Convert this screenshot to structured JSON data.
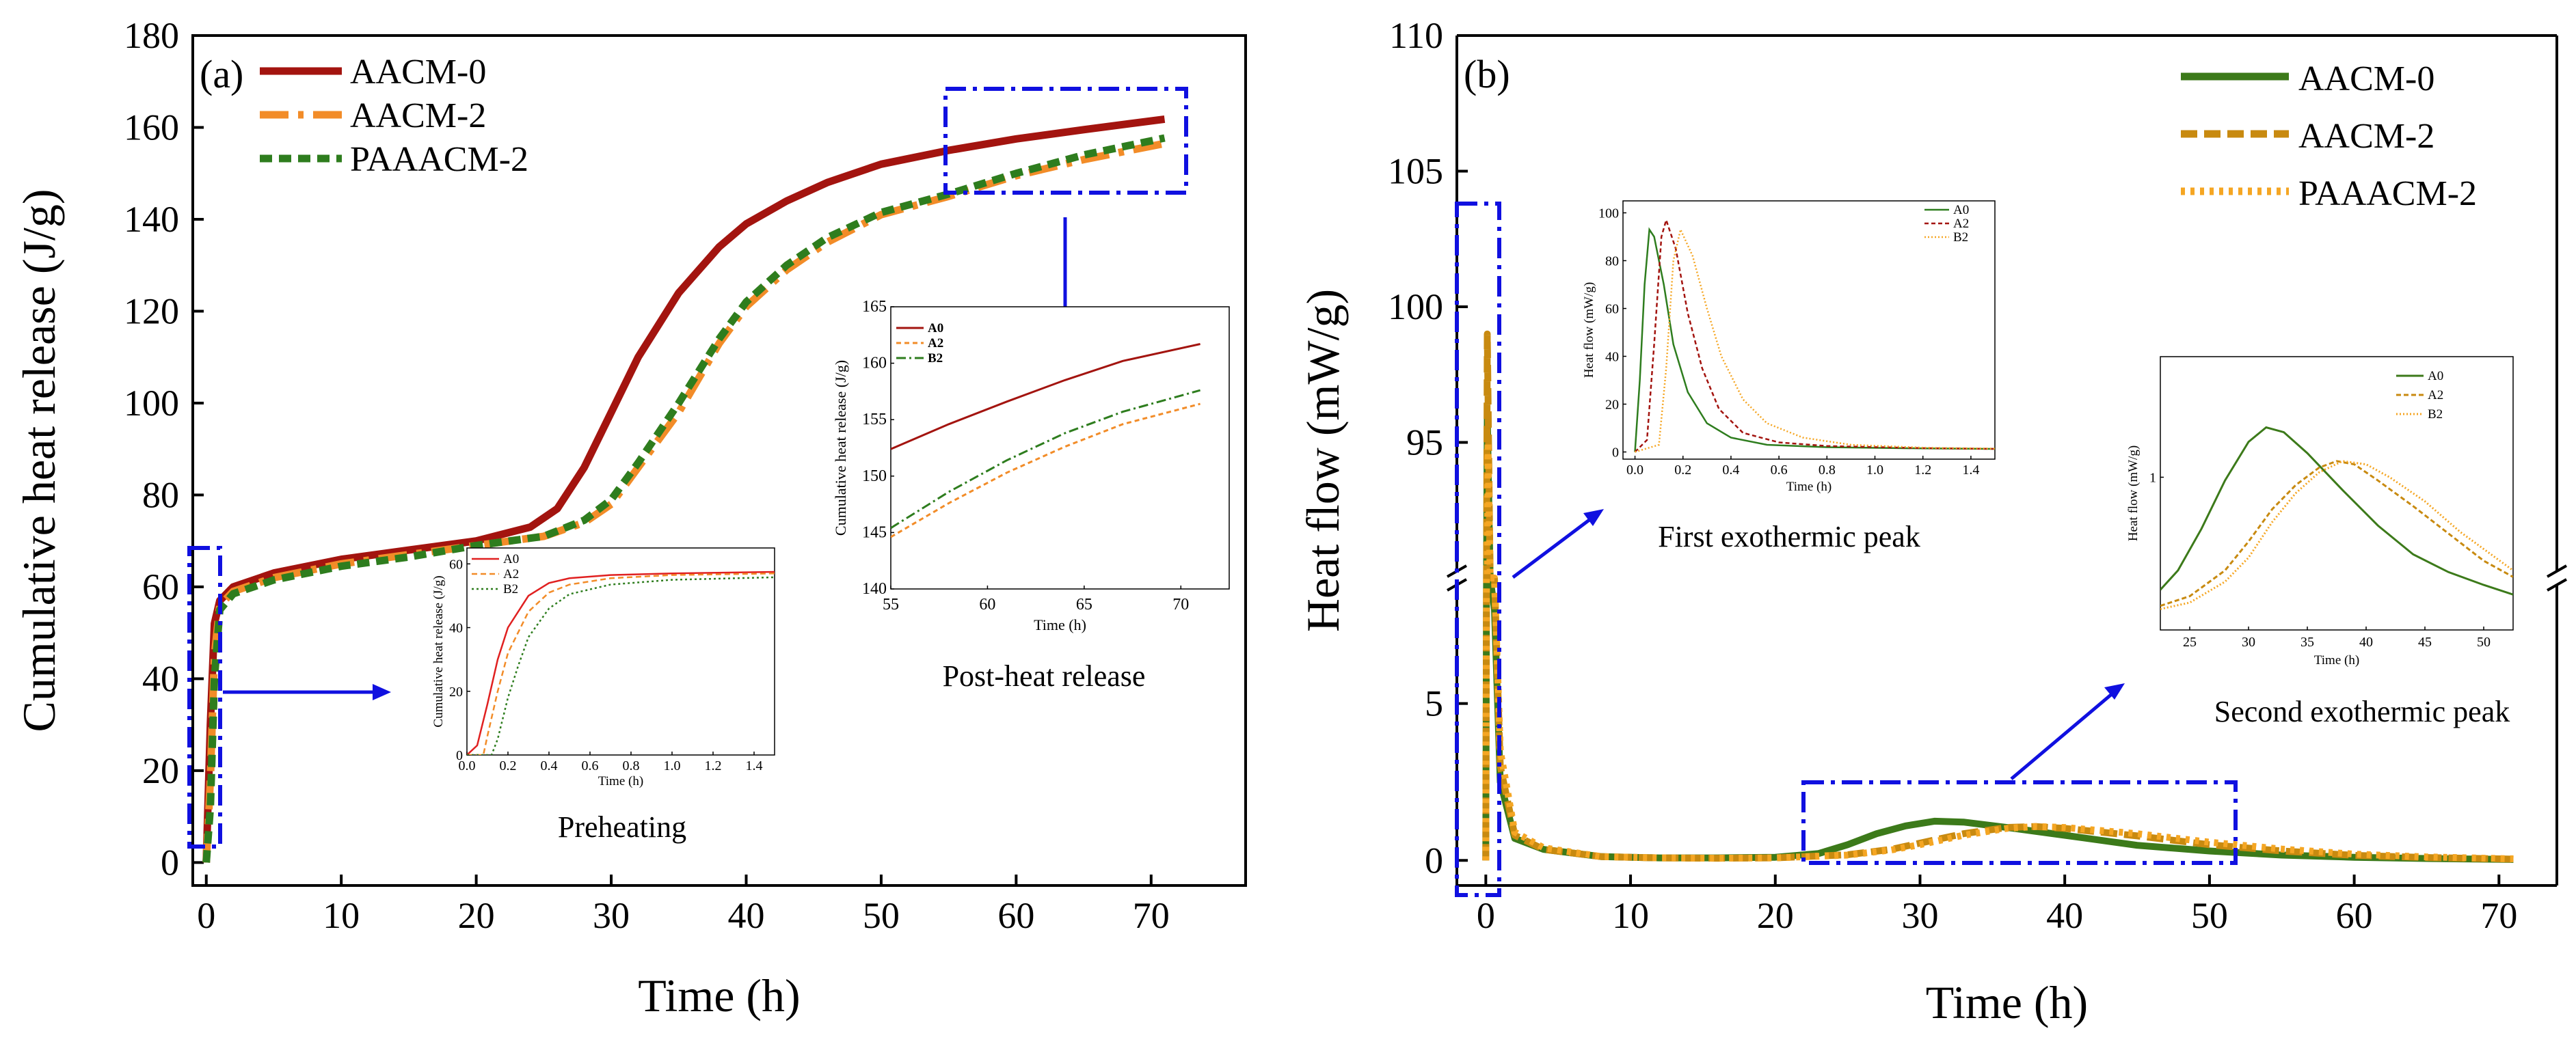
{
  "colors": {
    "dark_red": "#A3140F",
    "orange": "#F28C28",
    "green": "#2E7D1E",
    "dark_green": "#3C7A1A",
    "gold": "#C88A10",
    "light_orange": "#F5A623",
    "blue": "#1010E0",
    "red_inset": "#E02020"
  },
  "chart_data": [
    {
      "id": "a",
      "type": "line",
      "panel_label": "(a)",
      "xlabel": "Time (h)",
      "ylabel": "Cumulative heat release (J/g)",
      "xlim": [
        -1,
        77
      ],
      "ylim": [
        -5,
        180
      ],
      "xticks": [
        "0",
        "10",
        "20",
        "30",
        "40",
        "50",
        "60",
        "70"
      ],
      "yticks": [
        "0",
        "20",
        "40",
        "60",
        "80",
        "100",
        "120",
        "140",
        "160",
        "180"
      ],
      "legend": [
        "AACM-0",
        "AACM-2",
        "PAAACM-2"
      ],
      "series": [
        {
          "name": "AACM-0",
          "x": [
            0,
            0.3,
            0.6,
            1,
            2,
            5,
            10,
            15,
            20,
            24,
            26,
            28,
            30,
            32,
            35,
            38,
            40,
            43,
            46,
            50,
            55,
            60,
            65,
            71
          ],
          "y": [
            0,
            30,
            52,
            57,
            60,
            63,
            66,
            68,
            70,
            73,
            77,
            86,
            98,
            110,
            124,
            134,
            139,
            144,
            148,
            152,
            155,
            157.5,
            159.5,
            161.8
          ]
        },
        {
          "name": "AACM-2",
          "x": [
            0,
            0.3,
            0.6,
            1,
            2,
            5,
            10,
            15,
            20,
            25,
            28,
            30,
            32,
            35,
            38,
            40,
            43,
            46,
            50,
            55,
            60,
            65,
            71
          ],
          "y": [
            0,
            18,
            45,
            56,
            59,
            62,
            65,
            67,
            69,
            71,
            74,
            78,
            86,
            98,
            113,
            121,
            129,
            135,
            141,
            145,
            149.5,
            153,
            156.5
          ]
        },
        {
          "name": "PAAACM-2",
          "x": [
            0,
            0.3,
            0.6,
            1,
            2,
            5,
            10,
            15,
            20,
            25,
            28,
            30,
            32,
            35,
            38,
            40,
            43,
            46,
            50,
            55,
            60,
            65,
            71
          ],
          "y": [
            0,
            12,
            40,
            55,
            58.5,
            61.5,
            64.5,
            66.5,
            69,
            71,
            74.5,
            79,
            87,
            100,
            114,
            122,
            130,
            136,
            141.5,
            145.5,
            150,
            154,
            157.7
          ]
        }
      ],
      "annotation_caption_preheat": "Preheating",
      "annotation_caption_post": "Post-heat release",
      "insets": [
        {
          "id": "preheat",
          "xlabel": "Time (h)",
          "ylabel": "Cumulative heat release (J/g)",
          "xlim": [
            0,
            1.5
          ],
          "ylim": [
            0,
            65
          ],
          "xticks": [
            "0.0",
            "0.2",
            "0.4",
            "0.6",
            "0.8",
            "1.0",
            "1.2",
            "1.4"
          ],
          "yticks": [
            "0",
            "20",
            "40",
            "60"
          ],
          "legend": [
            "A0",
            "A2",
            "B2"
          ],
          "series": [
            {
              "name": "A0",
              "x": [
                0,
                0.05,
                0.1,
                0.15,
                0.2,
                0.3,
                0.4,
                0.5,
                0.7,
                1.0,
                1.5
              ],
              "y": [
                0,
                3,
                16,
                30,
                40,
                50,
                54,
                55.5,
                56.5,
                57,
                57.5
              ]
            },
            {
              "name": "A2",
              "x": [
                0,
                0.08,
                0.1,
                0.15,
                0.2,
                0.3,
                0.4,
                0.5,
                0.7,
                1.0,
                1.5
              ],
              "y": [
                0,
                0,
                6,
                20,
                32,
                45,
                51,
                53.5,
                55.5,
                56.5,
                57
              ]
            },
            {
              "name": "B2",
              "x": [
                0,
                0.12,
                0.15,
                0.2,
                0.25,
                0.3,
                0.4,
                0.5,
                0.7,
                1.0,
                1.5
              ],
              "y": [
                0,
                0,
                5,
                18,
                28,
                37,
                46,
                50.5,
                53.5,
                55,
                55.8
              ]
            }
          ]
        },
        {
          "id": "post",
          "xlabel": "Time (h)",
          "ylabel": "Cumulative heat release (J/g)",
          "xlim": [
            55,
            72.5
          ],
          "ylim": [
            140,
            165
          ],
          "xticks": [
            "55",
            "60",
            "65",
            "70"
          ],
          "yticks": [
            "140",
            "145",
            "150",
            "155",
            "160",
            "165"
          ],
          "legend": [
            "A0",
            "A2",
            "B2"
          ],
          "series": [
            {
              "name": "A0",
              "x": [
                55,
                58,
                61,
                64,
                67,
                71
              ],
              "y": [
                152.4,
                154.6,
                156.6,
                158.5,
                160.2,
                161.7
              ]
            },
            {
              "name": "A2",
              "x": [
                55,
                58,
                61,
                64,
                67,
                71
              ],
              "y": [
                144.6,
                147.6,
                150.3,
                152.6,
                154.6,
                156.4
              ]
            },
            {
              "name": "B2",
              "x": [
                55,
                58,
                61,
                64,
                67,
                71
              ],
              "y": [
                145.4,
                148.6,
                151.4,
                153.8,
                155.7,
                157.6
              ]
            }
          ]
        }
      ]
    },
    {
      "id": "b",
      "type": "line",
      "panel_label": "(b)",
      "xlabel": "Time (h)",
      "ylabel": "Heat flow (mW/g)",
      "xlim": [
        -2,
        74
      ],
      "ylim_lower": [
        -0.8,
        9
      ],
      "ylim_upper": [
        90,
        110
      ],
      "xticks": [
        "0",
        "10",
        "20",
        "30",
        "40",
        "50",
        "60",
        "70"
      ],
      "yticks_lower": [
        "0",
        "5"
      ],
      "yticks_upper": [
        "95",
        "100",
        "105",
        "110"
      ],
      "legend": [
        "AACM-0",
        "AACM-2",
        "PAAACM-2"
      ],
      "series": [
        {
          "name": "AACM-0",
          "x": [
            0,
            0.05,
            0.1,
            0.3,
            0.6,
            1,
            2,
            4,
            8,
            12,
            16,
            20,
            23,
            25,
            27,
            29,
            31,
            33,
            36,
            40,
            45,
            50,
            55,
            60,
            65,
            71
          ],
          "y": [
            0,
            60,
            96,
            40,
            8,
            2.5,
            0.7,
            0.35,
            0.12,
            0.08,
            0.08,
            0.1,
            0.22,
            0.5,
            0.85,
            1.1,
            1.25,
            1.22,
            1.05,
            0.8,
            0.48,
            0.3,
            0.17,
            0.1,
            0.06,
            0.03
          ]
        },
        {
          "name": "AACM-2",
          "x": [
            0,
            0.05,
            0.1,
            0.3,
            0.6,
            1,
            2,
            4,
            8,
            12,
            16,
            20,
            25,
            28,
            30,
            33,
            36,
            38,
            40,
            45,
            50,
            55,
            60,
            65,
            71
          ],
          "y": [
            0,
            45,
            99,
            55,
            12,
            3,
            0.8,
            0.35,
            0.12,
            0.08,
            0.07,
            0.08,
            0.18,
            0.35,
            0.55,
            0.85,
            1.05,
            1.08,
            1.02,
            0.78,
            0.5,
            0.3,
            0.16,
            0.09,
            0.04
          ]
        },
        {
          "name": "PAAACM-2",
          "x": [
            0,
            0.05,
            0.1,
            0.15,
            0.3,
            0.6,
            1,
            2,
            4,
            8,
            12,
            16,
            20,
            25,
            28,
            30,
            33,
            36,
            38,
            40,
            45,
            50,
            55,
            60,
            65,
            71
          ],
          "y": [
            0,
            20,
            70,
            95,
            65,
            15,
            3.5,
            0.9,
            0.4,
            0.12,
            0.08,
            0.07,
            0.08,
            0.17,
            0.33,
            0.5,
            0.8,
            1.02,
            1.08,
            1.05,
            0.85,
            0.58,
            0.36,
            0.2,
            0.11,
            0.05
          ]
        }
      ],
      "annotation_caption_first": "First exothermic peak",
      "annotation_caption_second": "Second exothermic peak",
      "insets": [
        {
          "id": "first",
          "xlabel": "Time (h)",
          "ylabel": "Heat flow (mW/g)",
          "xlim": [
            -0.05,
            1.5
          ],
          "ylim": [
            -3,
            105
          ],
          "xticks": [
            "0.0",
            "0.2",
            "0.4",
            "0.6",
            "0.8",
            "1.0",
            "1.2",
            "1.4"
          ],
          "yticks": [
            "0",
            "20",
            "40",
            "60",
            "80",
            "100"
          ],
          "legend": [
            "A0",
            "A2",
            "B2"
          ],
          "series": [
            {
              "name": "A0",
              "x": [
                0,
                0.02,
                0.04,
                0.06,
                0.08,
                0.12,
                0.16,
                0.22,
                0.3,
                0.4,
                0.55,
                0.8,
                1.2,
                1.5
              ],
              "y": [
                0,
                30,
                70,
                93,
                90,
                70,
                45,
                25,
                12,
                6,
                3,
                2,
                1.5,
                1.3
              ]
            },
            {
              "name": "A2",
              "x": [
                0,
                0.05,
                0.08,
                0.11,
                0.13,
                0.17,
                0.22,
                0.28,
                0.35,
                0.45,
                0.6,
                0.8,
                1.2,
                1.5
              ],
              "y": [
                0,
                5,
                45,
                90,
                97,
                85,
                58,
                35,
                18,
                8,
                4,
                2.5,
                1.6,
                1.3
              ]
            },
            {
              "name": "B2",
              "x": [
                0,
                0.1,
                0.13,
                0.16,
                0.19,
                0.24,
                0.3,
                0.36,
                0.45,
                0.55,
                0.7,
                0.9,
                1.2,
                1.5
              ],
              "y": [
                0,
                3,
                35,
                80,
                93,
                82,
                60,
                40,
                22,
                12,
                6,
                3,
                1.8,
                1.4
              ]
            }
          ]
        },
        {
          "id": "second",
          "xlabel": "Time (h)",
          "ylabel": "Heat flow (mW/g)",
          "xlim": [
            22.5,
            52.5
          ],
          "ylim": [
            0.05,
            1.75
          ],
          "xticks": [
            "25",
            "30",
            "35",
            "40",
            "45",
            "50"
          ],
          "yticks": [
            "1"
          ],
          "legend": [
            "A0",
            "A2",
            "B2"
          ],
          "series": [
            {
              "name": "A0",
              "x": [
                22.5,
                24,
                26,
                28,
                30,
                31.5,
                33,
                35,
                38,
                41,
                44,
                47,
                50,
                52.5
              ],
              "y": [
                0.3,
                0.42,
                0.68,
                0.98,
                1.22,
                1.31,
                1.28,
                1.15,
                0.92,
                0.7,
                0.52,
                0.41,
                0.33,
                0.27
              ]
            },
            {
              "name": "A2",
              "x": [
                22.5,
                25,
                28,
                30,
                32,
                34,
                36,
                37.5,
                39,
                41,
                44,
                47,
                50,
                52.5
              ],
              "y": [
                0.2,
                0.26,
                0.42,
                0.6,
                0.8,
                0.95,
                1.06,
                1.1,
                1.08,
                0.98,
                0.82,
                0.65,
                0.48,
                0.38
              ]
            },
            {
              "name": "B2",
              "x": [
                22.5,
                25,
                28,
                30,
                32,
                34,
                36,
                38,
                40,
                42,
                45,
                48,
                51,
                52.5
              ],
              "y": [
                0.18,
                0.22,
                0.35,
                0.5,
                0.72,
                0.9,
                1.03,
                1.1,
                1.08,
                1.0,
                0.85,
                0.66,
                0.5,
                0.42
              ]
            }
          ]
        }
      ]
    }
  ]
}
